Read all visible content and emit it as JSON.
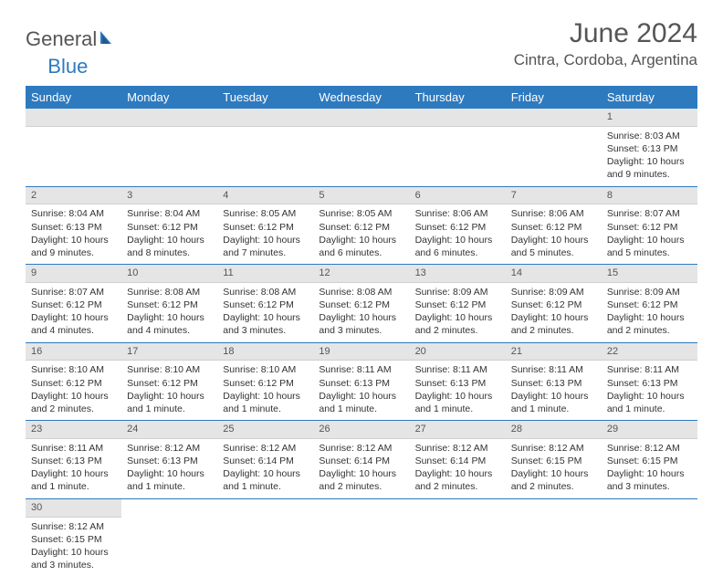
{
  "brand": {
    "part1": "General",
    "part2": "Blue"
  },
  "title": "June 2024",
  "location": "Cintra, Cordoba, Argentina",
  "colors": {
    "header_bg": "#2e7abf",
    "header_text": "#ffffff",
    "daynum_bg": "#e5e5e5",
    "row_divider": "#2e7abf",
    "text": "#333333",
    "title_text": "#555555"
  },
  "weekdays": [
    "Sunday",
    "Monday",
    "Tuesday",
    "Wednesday",
    "Thursday",
    "Friday",
    "Saturday"
  ],
  "weeks": [
    [
      null,
      null,
      null,
      null,
      null,
      null,
      {
        "n": "1",
        "sr": "Sunrise: 8:03 AM",
        "ss": "Sunset: 6:13 PM",
        "dl": "Daylight: 10 hours and 9 minutes."
      }
    ],
    [
      {
        "n": "2",
        "sr": "Sunrise: 8:04 AM",
        "ss": "Sunset: 6:13 PM",
        "dl": "Daylight: 10 hours and 9 minutes."
      },
      {
        "n": "3",
        "sr": "Sunrise: 8:04 AM",
        "ss": "Sunset: 6:12 PM",
        "dl": "Daylight: 10 hours and 8 minutes."
      },
      {
        "n": "4",
        "sr": "Sunrise: 8:05 AM",
        "ss": "Sunset: 6:12 PM",
        "dl": "Daylight: 10 hours and 7 minutes."
      },
      {
        "n": "5",
        "sr": "Sunrise: 8:05 AM",
        "ss": "Sunset: 6:12 PM",
        "dl": "Daylight: 10 hours and 6 minutes."
      },
      {
        "n": "6",
        "sr": "Sunrise: 8:06 AM",
        "ss": "Sunset: 6:12 PM",
        "dl": "Daylight: 10 hours and 6 minutes."
      },
      {
        "n": "7",
        "sr": "Sunrise: 8:06 AM",
        "ss": "Sunset: 6:12 PM",
        "dl": "Daylight: 10 hours and 5 minutes."
      },
      {
        "n": "8",
        "sr": "Sunrise: 8:07 AM",
        "ss": "Sunset: 6:12 PM",
        "dl": "Daylight: 10 hours and 5 minutes."
      }
    ],
    [
      {
        "n": "9",
        "sr": "Sunrise: 8:07 AM",
        "ss": "Sunset: 6:12 PM",
        "dl": "Daylight: 10 hours and 4 minutes."
      },
      {
        "n": "10",
        "sr": "Sunrise: 8:08 AM",
        "ss": "Sunset: 6:12 PM",
        "dl": "Daylight: 10 hours and 4 minutes."
      },
      {
        "n": "11",
        "sr": "Sunrise: 8:08 AM",
        "ss": "Sunset: 6:12 PM",
        "dl": "Daylight: 10 hours and 3 minutes."
      },
      {
        "n": "12",
        "sr": "Sunrise: 8:08 AM",
        "ss": "Sunset: 6:12 PM",
        "dl": "Daylight: 10 hours and 3 minutes."
      },
      {
        "n": "13",
        "sr": "Sunrise: 8:09 AM",
        "ss": "Sunset: 6:12 PM",
        "dl": "Daylight: 10 hours and 2 minutes."
      },
      {
        "n": "14",
        "sr": "Sunrise: 8:09 AM",
        "ss": "Sunset: 6:12 PM",
        "dl": "Daylight: 10 hours and 2 minutes."
      },
      {
        "n": "15",
        "sr": "Sunrise: 8:09 AM",
        "ss": "Sunset: 6:12 PM",
        "dl": "Daylight: 10 hours and 2 minutes."
      }
    ],
    [
      {
        "n": "16",
        "sr": "Sunrise: 8:10 AM",
        "ss": "Sunset: 6:12 PM",
        "dl": "Daylight: 10 hours and 2 minutes."
      },
      {
        "n": "17",
        "sr": "Sunrise: 8:10 AM",
        "ss": "Sunset: 6:12 PM",
        "dl": "Daylight: 10 hours and 1 minute."
      },
      {
        "n": "18",
        "sr": "Sunrise: 8:10 AM",
        "ss": "Sunset: 6:12 PM",
        "dl": "Daylight: 10 hours and 1 minute."
      },
      {
        "n": "19",
        "sr": "Sunrise: 8:11 AM",
        "ss": "Sunset: 6:13 PM",
        "dl": "Daylight: 10 hours and 1 minute."
      },
      {
        "n": "20",
        "sr": "Sunrise: 8:11 AM",
        "ss": "Sunset: 6:13 PM",
        "dl": "Daylight: 10 hours and 1 minute."
      },
      {
        "n": "21",
        "sr": "Sunrise: 8:11 AM",
        "ss": "Sunset: 6:13 PM",
        "dl": "Daylight: 10 hours and 1 minute."
      },
      {
        "n": "22",
        "sr": "Sunrise: 8:11 AM",
        "ss": "Sunset: 6:13 PM",
        "dl": "Daylight: 10 hours and 1 minute."
      }
    ],
    [
      {
        "n": "23",
        "sr": "Sunrise: 8:11 AM",
        "ss": "Sunset: 6:13 PM",
        "dl": "Daylight: 10 hours and 1 minute."
      },
      {
        "n": "24",
        "sr": "Sunrise: 8:12 AM",
        "ss": "Sunset: 6:13 PM",
        "dl": "Daylight: 10 hours and 1 minute."
      },
      {
        "n": "25",
        "sr": "Sunrise: 8:12 AM",
        "ss": "Sunset: 6:14 PM",
        "dl": "Daylight: 10 hours and 1 minute."
      },
      {
        "n": "26",
        "sr": "Sunrise: 8:12 AM",
        "ss": "Sunset: 6:14 PM",
        "dl": "Daylight: 10 hours and 2 minutes."
      },
      {
        "n": "27",
        "sr": "Sunrise: 8:12 AM",
        "ss": "Sunset: 6:14 PM",
        "dl": "Daylight: 10 hours and 2 minutes."
      },
      {
        "n": "28",
        "sr": "Sunrise: 8:12 AM",
        "ss": "Sunset: 6:15 PM",
        "dl": "Daylight: 10 hours and 2 minutes."
      },
      {
        "n": "29",
        "sr": "Sunrise: 8:12 AM",
        "ss": "Sunset: 6:15 PM",
        "dl": "Daylight: 10 hours and 3 minutes."
      }
    ],
    [
      {
        "n": "30",
        "sr": "Sunrise: 8:12 AM",
        "ss": "Sunset: 6:15 PM",
        "dl": "Daylight: 10 hours and 3 minutes."
      },
      null,
      null,
      null,
      null,
      null,
      null
    ]
  ]
}
